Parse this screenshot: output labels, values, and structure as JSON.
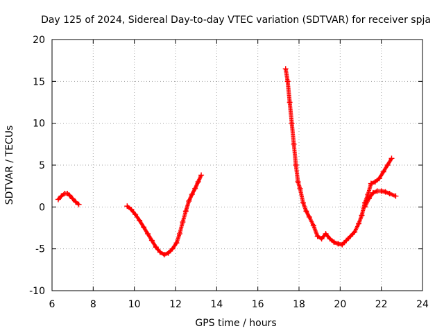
{
  "chart_data": {
    "type": "scatter",
    "title": "Day 125 of 2024, Sidereal Day-to-day VTEC variation (SDTVAR) for receiver spja",
    "xlabel": "GPS time / hours",
    "ylabel": "SDTVAR / TECUs",
    "xlim": [
      6,
      24
    ],
    "ylim": [
      -10,
      20
    ],
    "xticks": [
      "6",
      "8",
      "10",
      "12",
      "14",
      "16",
      "18",
      "20",
      "22",
      "24"
    ],
    "yticks": [
      "-10",
      "-5",
      "0",
      "5",
      "10",
      "15",
      "20"
    ],
    "grid": true,
    "marker": "+",
    "color": "#ff0000",
    "series": [
      {
        "name": "segment-1",
        "x": [
          6.3,
          6.45,
          6.6,
          6.75,
          6.85,
          7.0,
          7.15,
          7.3
        ],
        "y": [
          0.9,
          1.3,
          1.6,
          1.6,
          1.4,
          1.0,
          0.6,
          0.3
        ]
      },
      {
        "name": "segment-2",
        "x": [
          9.65,
          9.85,
          10.05,
          10.25,
          10.45,
          10.65,
          10.85,
          11.05,
          11.25,
          11.45,
          11.65,
          11.85,
          12.05,
          12.2,
          12.35,
          12.5,
          12.65,
          12.8,
          12.95,
          13.1,
          13.25
        ],
        "y": [
          0.1,
          -0.3,
          -0.9,
          -1.6,
          -2.4,
          -3.2,
          -4.0,
          -4.8,
          -5.4,
          -5.7,
          -5.5,
          -5.0,
          -4.3,
          -3.2,
          -1.8,
          -0.5,
          0.7,
          1.5,
          2.2,
          3.0,
          3.8
        ]
      },
      {
        "name": "segment-3",
        "x": [
          17.35,
          17.45,
          17.55,
          17.65,
          17.75,
          17.85,
          17.95,
          18.05,
          18.2,
          18.35,
          18.5,
          18.7,
          18.9,
          19.1,
          19.3,
          19.5,
          19.7,
          19.9,
          20.1,
          20.3,
          20.5,
          20.7,
          20.9,
          21.05,
          21.2,
          21.35,
          21.5,
          21.7,
          21.9,
          22.1,
          22.3,
          22.5
        ],
        "y": [
          16.5,
          15.0,
          12.5,
          10.0,
          7.5,
          5.0,
          3.0,
          2.2,
          0.5,
          -0.5,
          -1.2,
          -2.2,
          -3.5,
          -3.8,
          -3.2,
          -3.8,
          -4.2,
          -4.4,
          -4.5,
          -4.0,
          -3.5,
          -3.0,
          -2.0,
          -1.0,
          0.5,
          1.5,
          2.8,
          3.0,
          3.4,
          4.2,
          5.0,
          5.8
        ]
      },
      {
        "name": "segment-4",
        "x": [
          21.2,
          21.4,
          21.6,
          21.8,
          22.0,
          22.2,
          22.4,
          22.7
        ],
        "y": [
          0.0,
          1.0,
          1.7,
          1.9,
          1.9,
          1.8,
          1.6,
          1.3
        ]
      }
    ]
  }
}
